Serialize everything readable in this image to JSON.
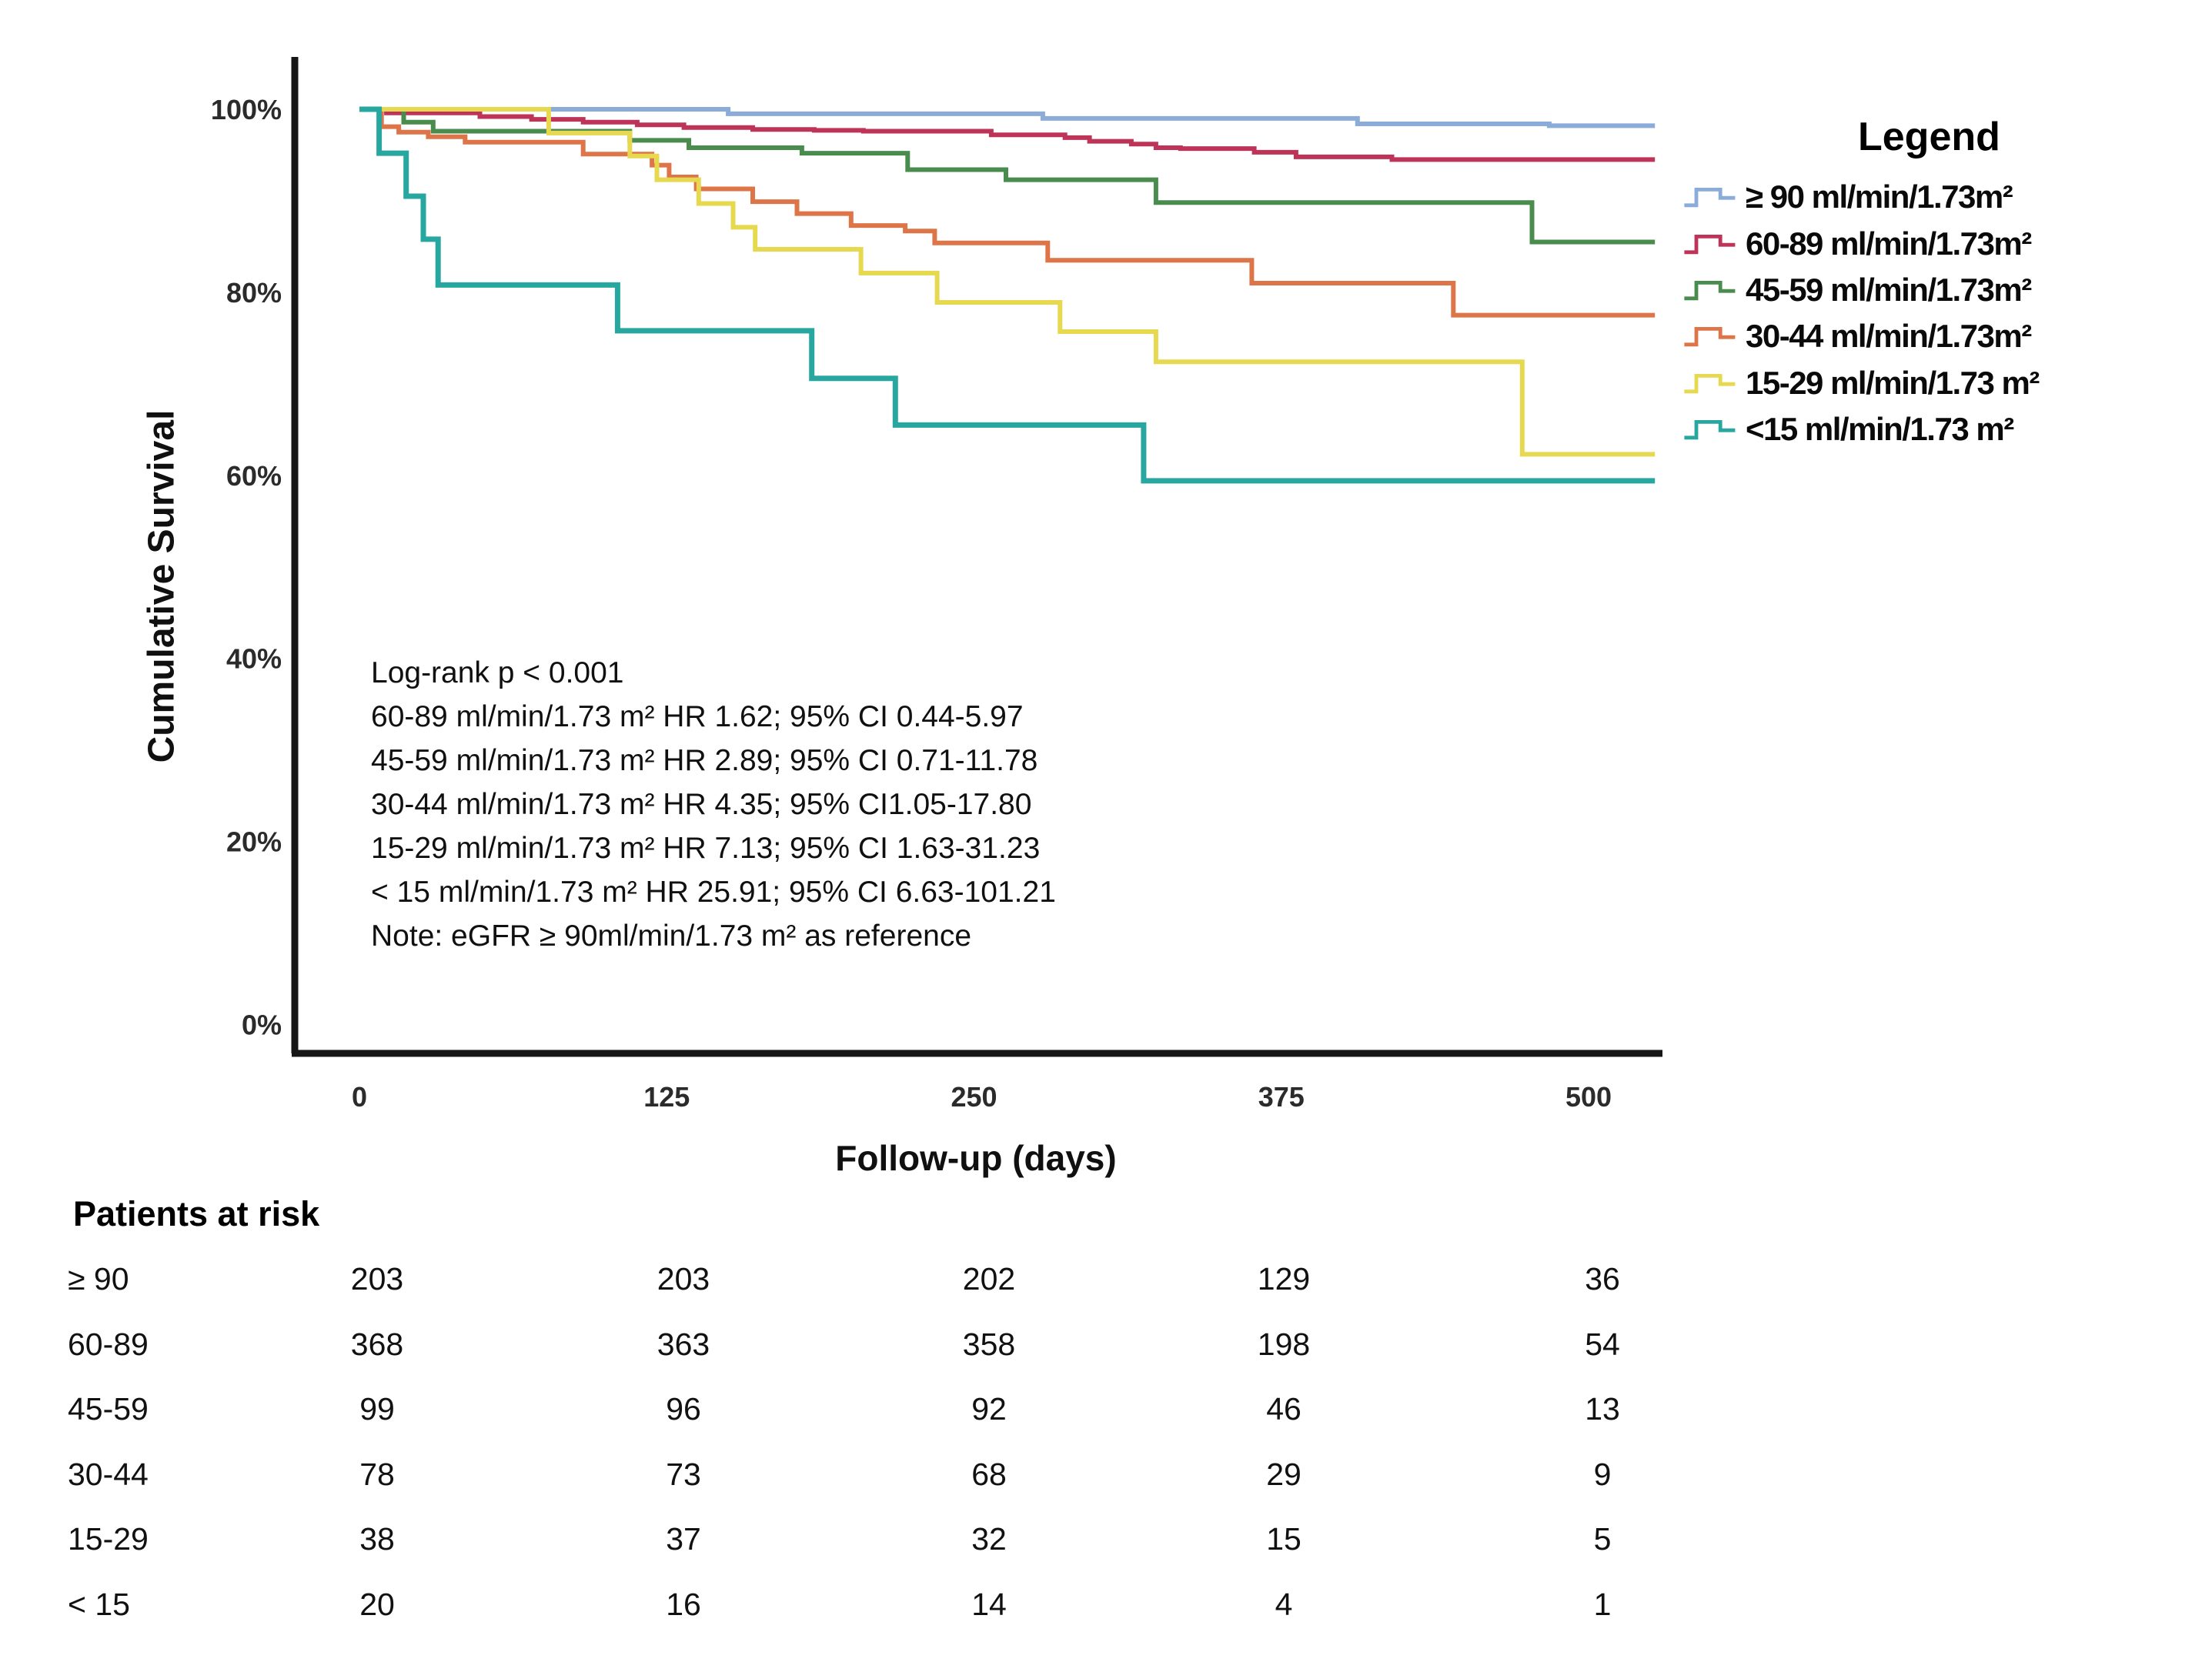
{
  "chart_data": {
    "type": "line",
    "subtype": "kaplan-meier-step",
    "title": "",
    "xlabel": "Follow-up (days)",
    "ylabel": "Cumulative Survival",
    "x_ticks": [
      0,
      125,
      250,
      375,
      500
    ],
    "y_ticks": [
      "0%",
      "20%",
      "40%",
      "60%",
      "80%",
      "100%"
    ],
    "xlim": [
      0,
      527
    ],
    "ylim": [
      0,
      100
    ],
    "grid": false,
    "legend_position": "right",
    "legend_title": "Legend",
    "series": [
      {
        "id": "gte90",
        "name": "≥ 90 ml/min/1.73m²",
        "color": "#8babd9",
        "width": 6,
        "points": [
          [
            0,
            100
          ],
          [
            150,
            99.5
          ],
          [
            278,
            99.0
          ],
          [
            406,
            98.4
          ],
          [
            484,
            98.2
          ]
        ]
      },
      {
        "id": "60-89",
        "name": "60-89 ml/min/1.73m²",
        "color": "#bd3458",
        "width": 6,
        "points": [
          [
            0,
            100
          ],
          [
            11,
            99.6
          ],
          [
            49,
            99.2
          ],
          [
            70,
            98.9
          ],
          [
            91,
            98.6
          ],
          [
            113,
            98.3
          ],
          [
            132,
            98.0
          ],
          [
            160,
            97.8
          ],
          [
            185,
            97.7
          ],
          [
            205,
            97.6
          ],
          [
            257,
            97.2
          ],
          [
            287,
            96.9
          ],
          [
            297,
            96.5
          ],
          [
            314,
            96.2
          ],
          [
            324,
            95.8
          ],
          [
            334,
            95.7
          ],
          [
            364,
            95.3
          ],
          [
            381,
            94.8
          ],
          [
            420,
            94.5
          ]
        ]
      },
      {
        "id": "45-59",
        "name": "45-59 ml/min/1.73m²",
        "color": "#4a8b4e",
        "width": 6,
        "points": [
          [
            0,
            100
          ],
          [
            18,
            98.6
          ],
          [
            30,
            97.6
          ],
          [
            110,
            96.6
          ],
          [
            134,
            95.8
          ],
          [
            180,
            95.2
          ],
          [
            223,
            93.4
          ],
          [
            263,
            92.3
          ],
          [
            324,
            89.8
          ],
          [
            477,
            85.5
          ]
        ]
      },
      {
        "id": "30-44",
        "name": "30-44 ml/min/1.73m²",
        "color": "#de7549",
        "width": 6,
        "points": [
          [
            0,
            100
          ],
          [
            9,
            98.1
          ],
          [
            16,
            97.5
          ],
          [
            28,
            97.0
          ],
          [
            43,
            96.4
          ],
          [
            91,
            95.1
          ],
          [
            119,
            93.9
          ],
          [
            126,
            92.6
          ],
          [
            137,
            91.3
          ],
          [
            160,
            89.9
          ],
          [
            178,
            88.6
          ],
          [
            200,
            87.3
          ],
          [
            222,
            86.7
          ],
          [
            234,
            85.4
          ],
          [
            280,
            83.5
          ],
          [
            363,
            81.0
          ],
          [
            445,
            77.5
          ]
        ]
      },
      {
        "id": "15-29",
        "name": "15-29 ml/min/1.73 m²",
        "color": "#e6d84f",
        "width": 6,
        "points": [
          [
            0,
            100
          ],
          [
            77,
            97.4
          ],
          [
            110,
            94.9
          ],
          [
            121,
            92.3
          ],
          [
            138,
            89.7
          ],
          [
            152,
            87.1
          ],
          [
            161,
            84.7
          ],
          [
            204,
            82.1
          ],
          [
            235,
            78.9
          ],
          [
            285,
            75.7
          ],
          [
            324,
            72.4
          ],
          [
            473,
            62.3
          ]
        ]
      },
      {
        "id": "lt15",
        "name": "<15  ml/min/1.73 m²",
        "color": "#28a7a0",
        "width": 7,
        "points": [
          [
            0,
            100
          ],
          [
            8,
            95.2
          ],
          [
            19,
            90.5
          ],
          [
            26,
            85.8
          ],
          [
            32,
            80.8
          ],
          [
            105,
            75.8
          ],
          [
            184,
            70.6
          ],
          [
            218,
            65.5
          ],
          [
            319,
            59.4
          ]
        ]
      }
    ],
    "annotation": [
      "Log-rank p < 0.001",
      "60-89 ml/min/1.73 m² HR 1.62; 95% CI 0.44-5.97",
      "45-59 ml/min/1.73 m² HR 2.89; 95% CI 0.71-11.78",
      "30-44 ml/min/1.73 m² HR 4.35; 95% CI1.05-17.80",
      "15-29 ml/min/1.73 m² HR 7.13; 95% CI 1.63-31.23",
      "< 15 ml/min/1.73 m² HR 25.91; 95% CI 6.63-101.21",
      "Note: eGFR ≥ 90ml/min/1.73 m² as reference"
    ],
    "at_risk": {
      "header": "Patients at risk",
      "time_columns": [
        0,
        125,
        250,
        375,
        500
      ],
      "rows": [
        {
          "label": "≥ 90",
          "values": [
            203,
            203,
            202,
            129,
            36
          ]
        },
        {
          "label": "60-89",
          "values": [
            368,
            363,
            358,
            198,
            54
          ]
        },
        {
          "label": "45-59",
          "values": [
            99,
            96,
            92,
            46,
            13
          ]
        },
        {
          "label": "30-44",
          "values": [
            78,
            73,
            68,
            29,
            9
          ]
        },
        {
          "label": "15-29",
          "values": [
            38,
            37,
            32,
            15,
            5
          ]
        },
        {
          "label": "< 15",
          "values": [
            20,
            16,
            14,
            4,
            1
          ]
        }
      ]
    },
    "colors": {
      "axis": "#161616",
      "text": "#101010"
    }
  }
}
